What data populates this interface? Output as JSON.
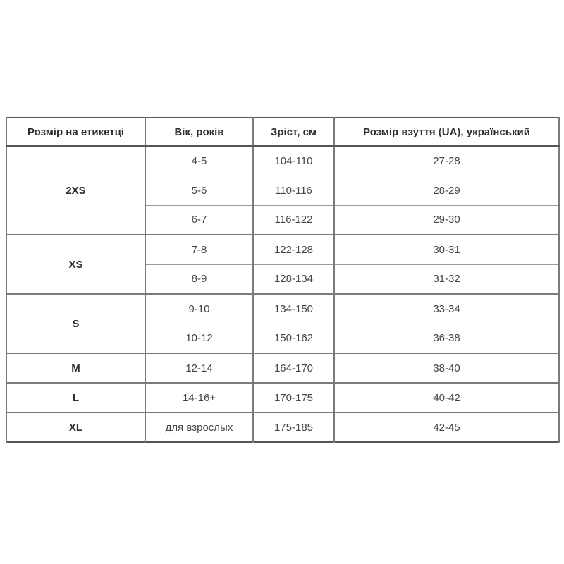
{
  "table": {
    "headers": [
      "Розмір на етикетці",
      "Вік, років",
      "Зріст, см",
      "Розмір взуття (UA), український"
    ],
    "groups": [
      {
        "size": "2XS",
        "rows": [
          {
            "age": "4-5",
            "height": "104-110",
            "shoe": "27-28"
          },
          {
            "age": "5-6",
            "height": "110-116",
            "shoe": "28-29"
          },
          {
            "age": "6-7",
            "height": "116-122",
            "shoe": "29-30"
          }
        ]
      },
      {
        "size": "XS",
        "rows": [
          {
            "age": "7-8",
            "height": "122-128",
            "shoe": "30-31"
          },
          {
            "age": "8-9",
            "height": "128-134",
            "shoe": "31-32"
          }
        ]
      },
      {
        "size": "S",
        "rows": [
          {
            "age": "9-10",
            "height": "134-150",
            "shoe": "33-34"
          },
          {
            "age": "10-12",
            "height": "150-162",
            "shoe": "36-38"
          }
        ]
      },
      {
        "size": "M",
        "rows": [
          {
            "age": "12-14",
            "height": "164-170",
            "shoe": "38-40"
          }
        ]
      },
      {
        "size": "L",
        "rows": [
          {
            "age": "14-16+",
            "height": "170-175",
            "shoe": "40-42"
          }
        ]
      },
      {
        "size": "XL",
        "rows": [
          {
            "age": "для взрослых",
            "height": "175-185",
            "shoe": "42-45"
          }
        ]
      }
    ],
    "colors": {
      "background": "#ffffff",
      "border_strong": "#565656",
      "border_mid": "#7a7a7a",
      "border_light": "#9a9a9a",
      "text_strong": "#2f2f2f",
      "text_cell": "#444444"
    }
  }
}
